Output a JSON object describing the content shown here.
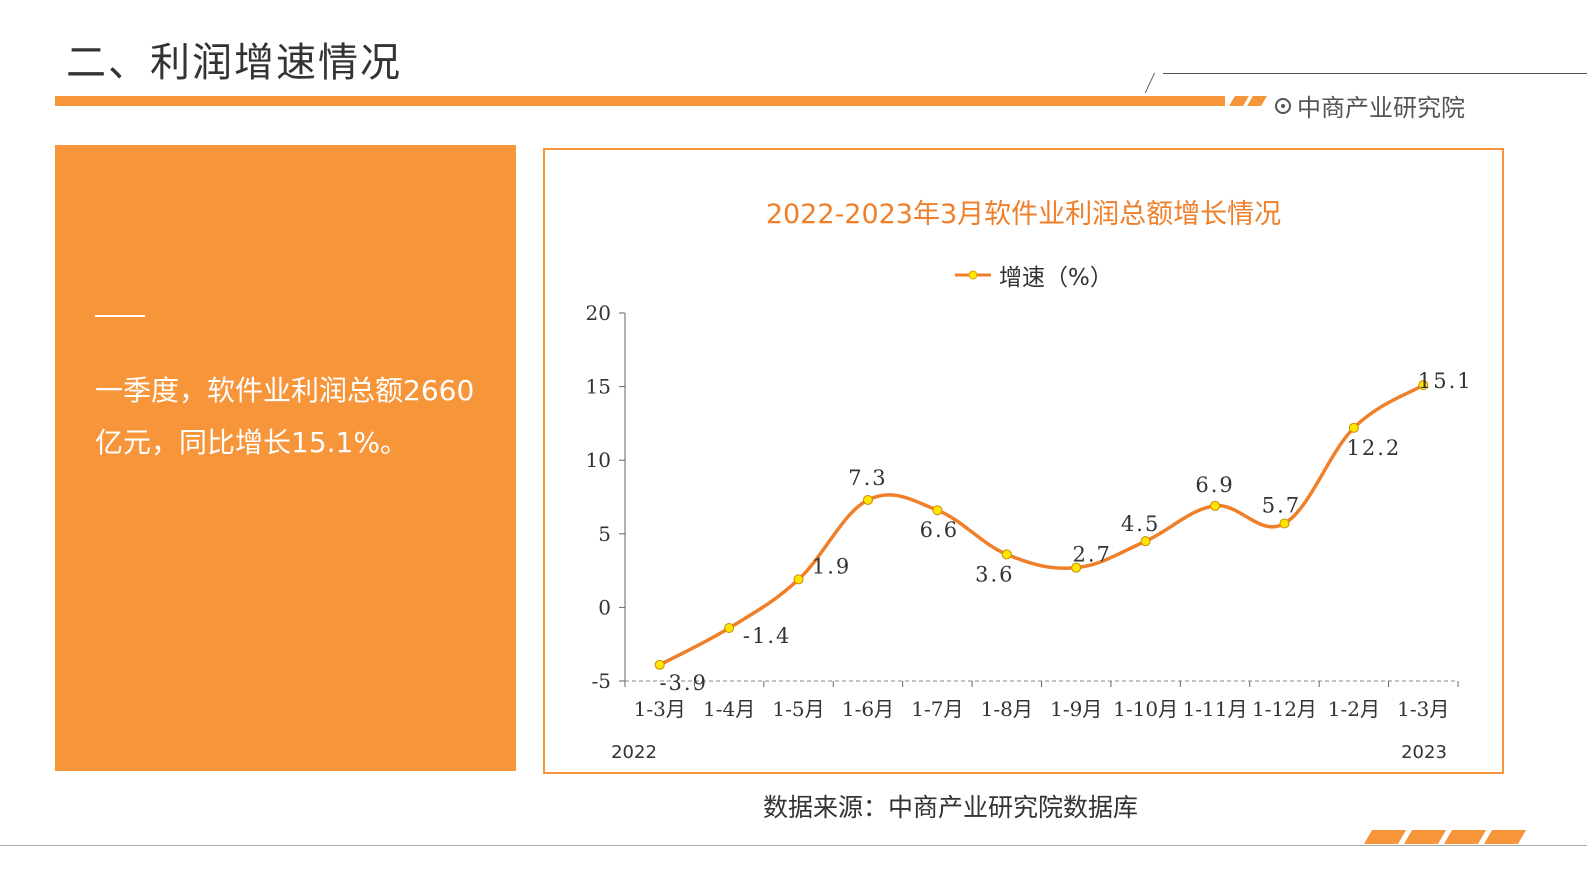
{
  "header": {
    "title": "二、利润增速情况",
    "brand": "中商产业研究院"
  },
  "panel": {
    "text": "一季度，软件业利润总额2660亿元，同比增长15.1%。"
  },
  "source": "数据来源：中商产业研究院数据库",
  "colors": {
    "accent": "#f7953b",
    "line": "#f07f2a",
    "marker": "#ffe600"
  },
  "chart_data": {
    "type": "line",
    "title": "2022-2023年3月软件业利润总额增长情况",
    "categories": [
      "1-3月",
      "1-4月",
      "1-5月",
      "1-6月",
      "1-7月",
      "1-8月",
      "1-9月",
      "1-10月",
      "1-11月",
      "1-12月",
      "1-2月",
      "1-3月"
    ],
    "series": [
      {
        "name": "增速（%）",
        "values": [
          -3.9,
          -1.4,
          1.9,
          7.3,
          6.6,
          3.6,
          2.7,
          4.5,
          6.9,
          5.7,
          12.2,
          15.1
        ]
      }
    ],
    "data_labels": [
      "-3.9",
      "-1.4",
      "1.9",
      "7.3",
      "6.6",
      "3.6",
      "2.7",
      "4.5",
      "6.9",
      "5.7",
      "12.2",
      "15.1"
    ],
    "year_labels": [
      "2022",
      "2023"
    ],
    "y_ticks": [
      "20",
      "15",
      "10",
      "5",
      "0",
      "-5"
    ],
    "ylim": [
      -5,
      20
    ],
    "legend": "top",
    "grid": false
  }
}
